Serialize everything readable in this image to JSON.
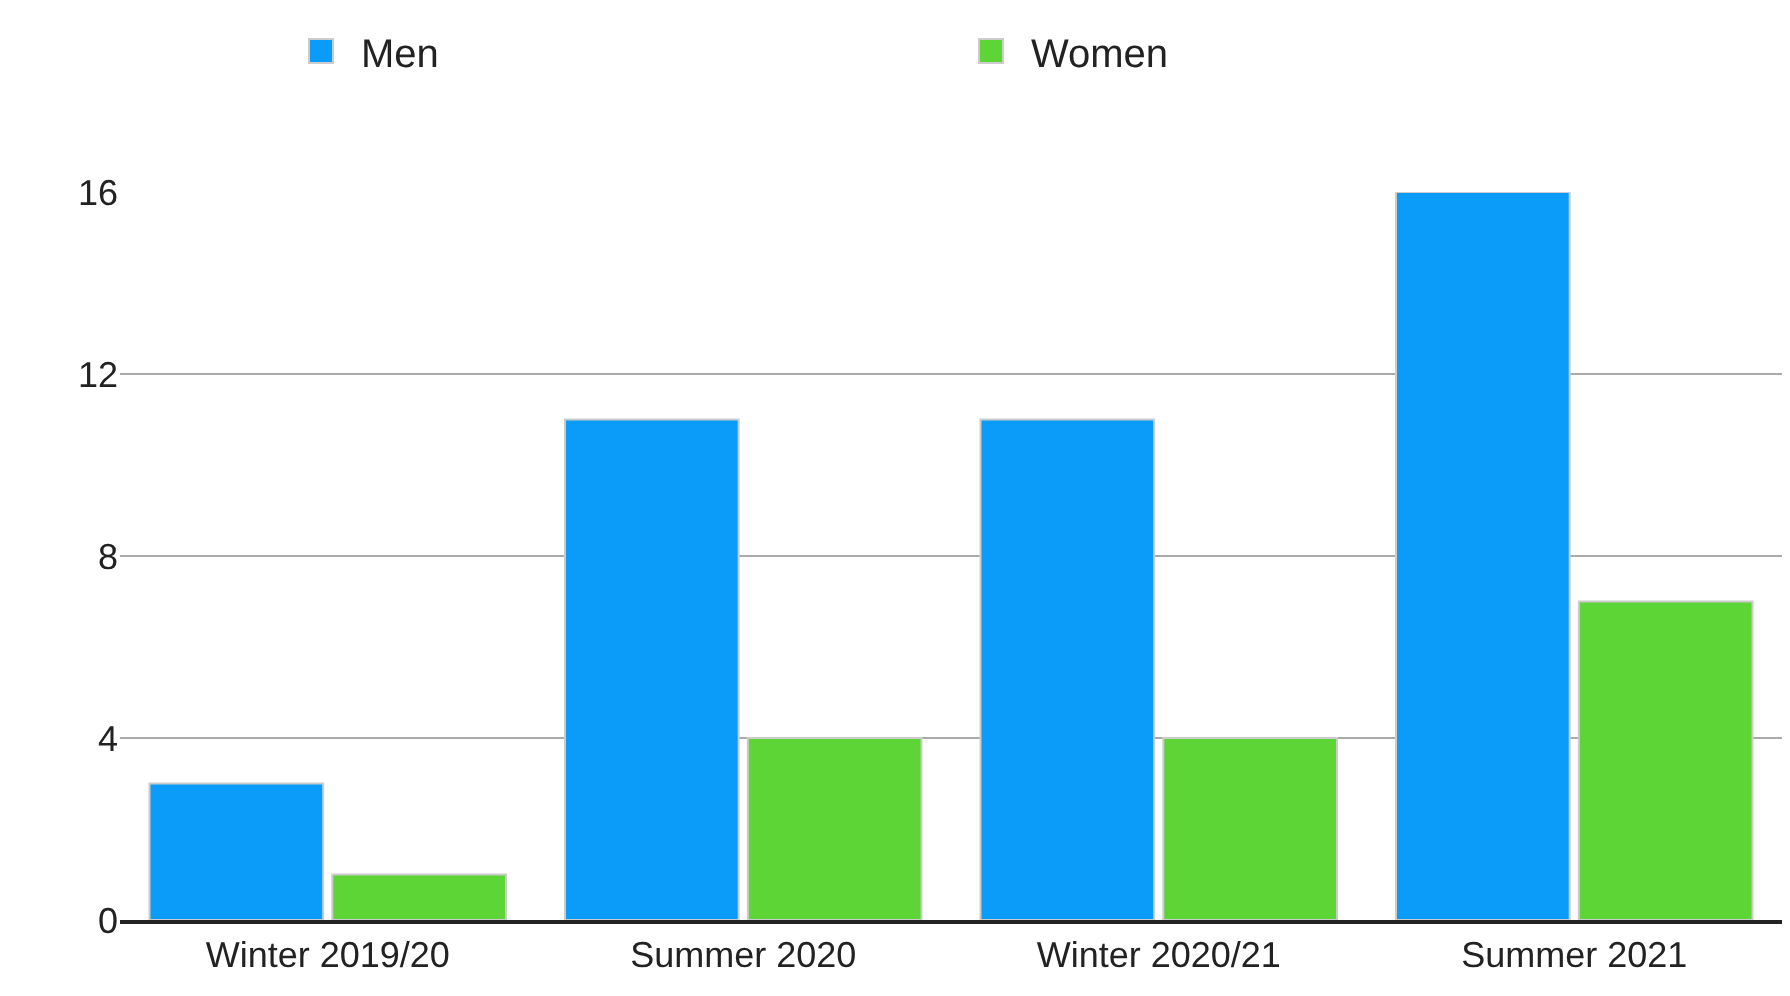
{
  "chart_data": {
    "type": "bar",
    "categories": [
      "Winter 2019/20",
      "Summer 2020",
      "Winter 2020/21",
      "Summer 2021"
    ],
    "series": [
      {
        "name": "Men",
        "color": "#0a9cf8",
        "values": [
          3,
          11,
          11,
          16
        ]
      },
      {
        "name": "Women",
        "color": "#5ed537",
        "values": [
          1,
          4,
          4,
          7
        ]
      }
    ],
    "ylim": [
      0,
      16
    ],
    "yticks": [
      0,
      4,
      8,
      12,
      16
    ],
    "grid": "y",
    "legend": "top"
  }
}
